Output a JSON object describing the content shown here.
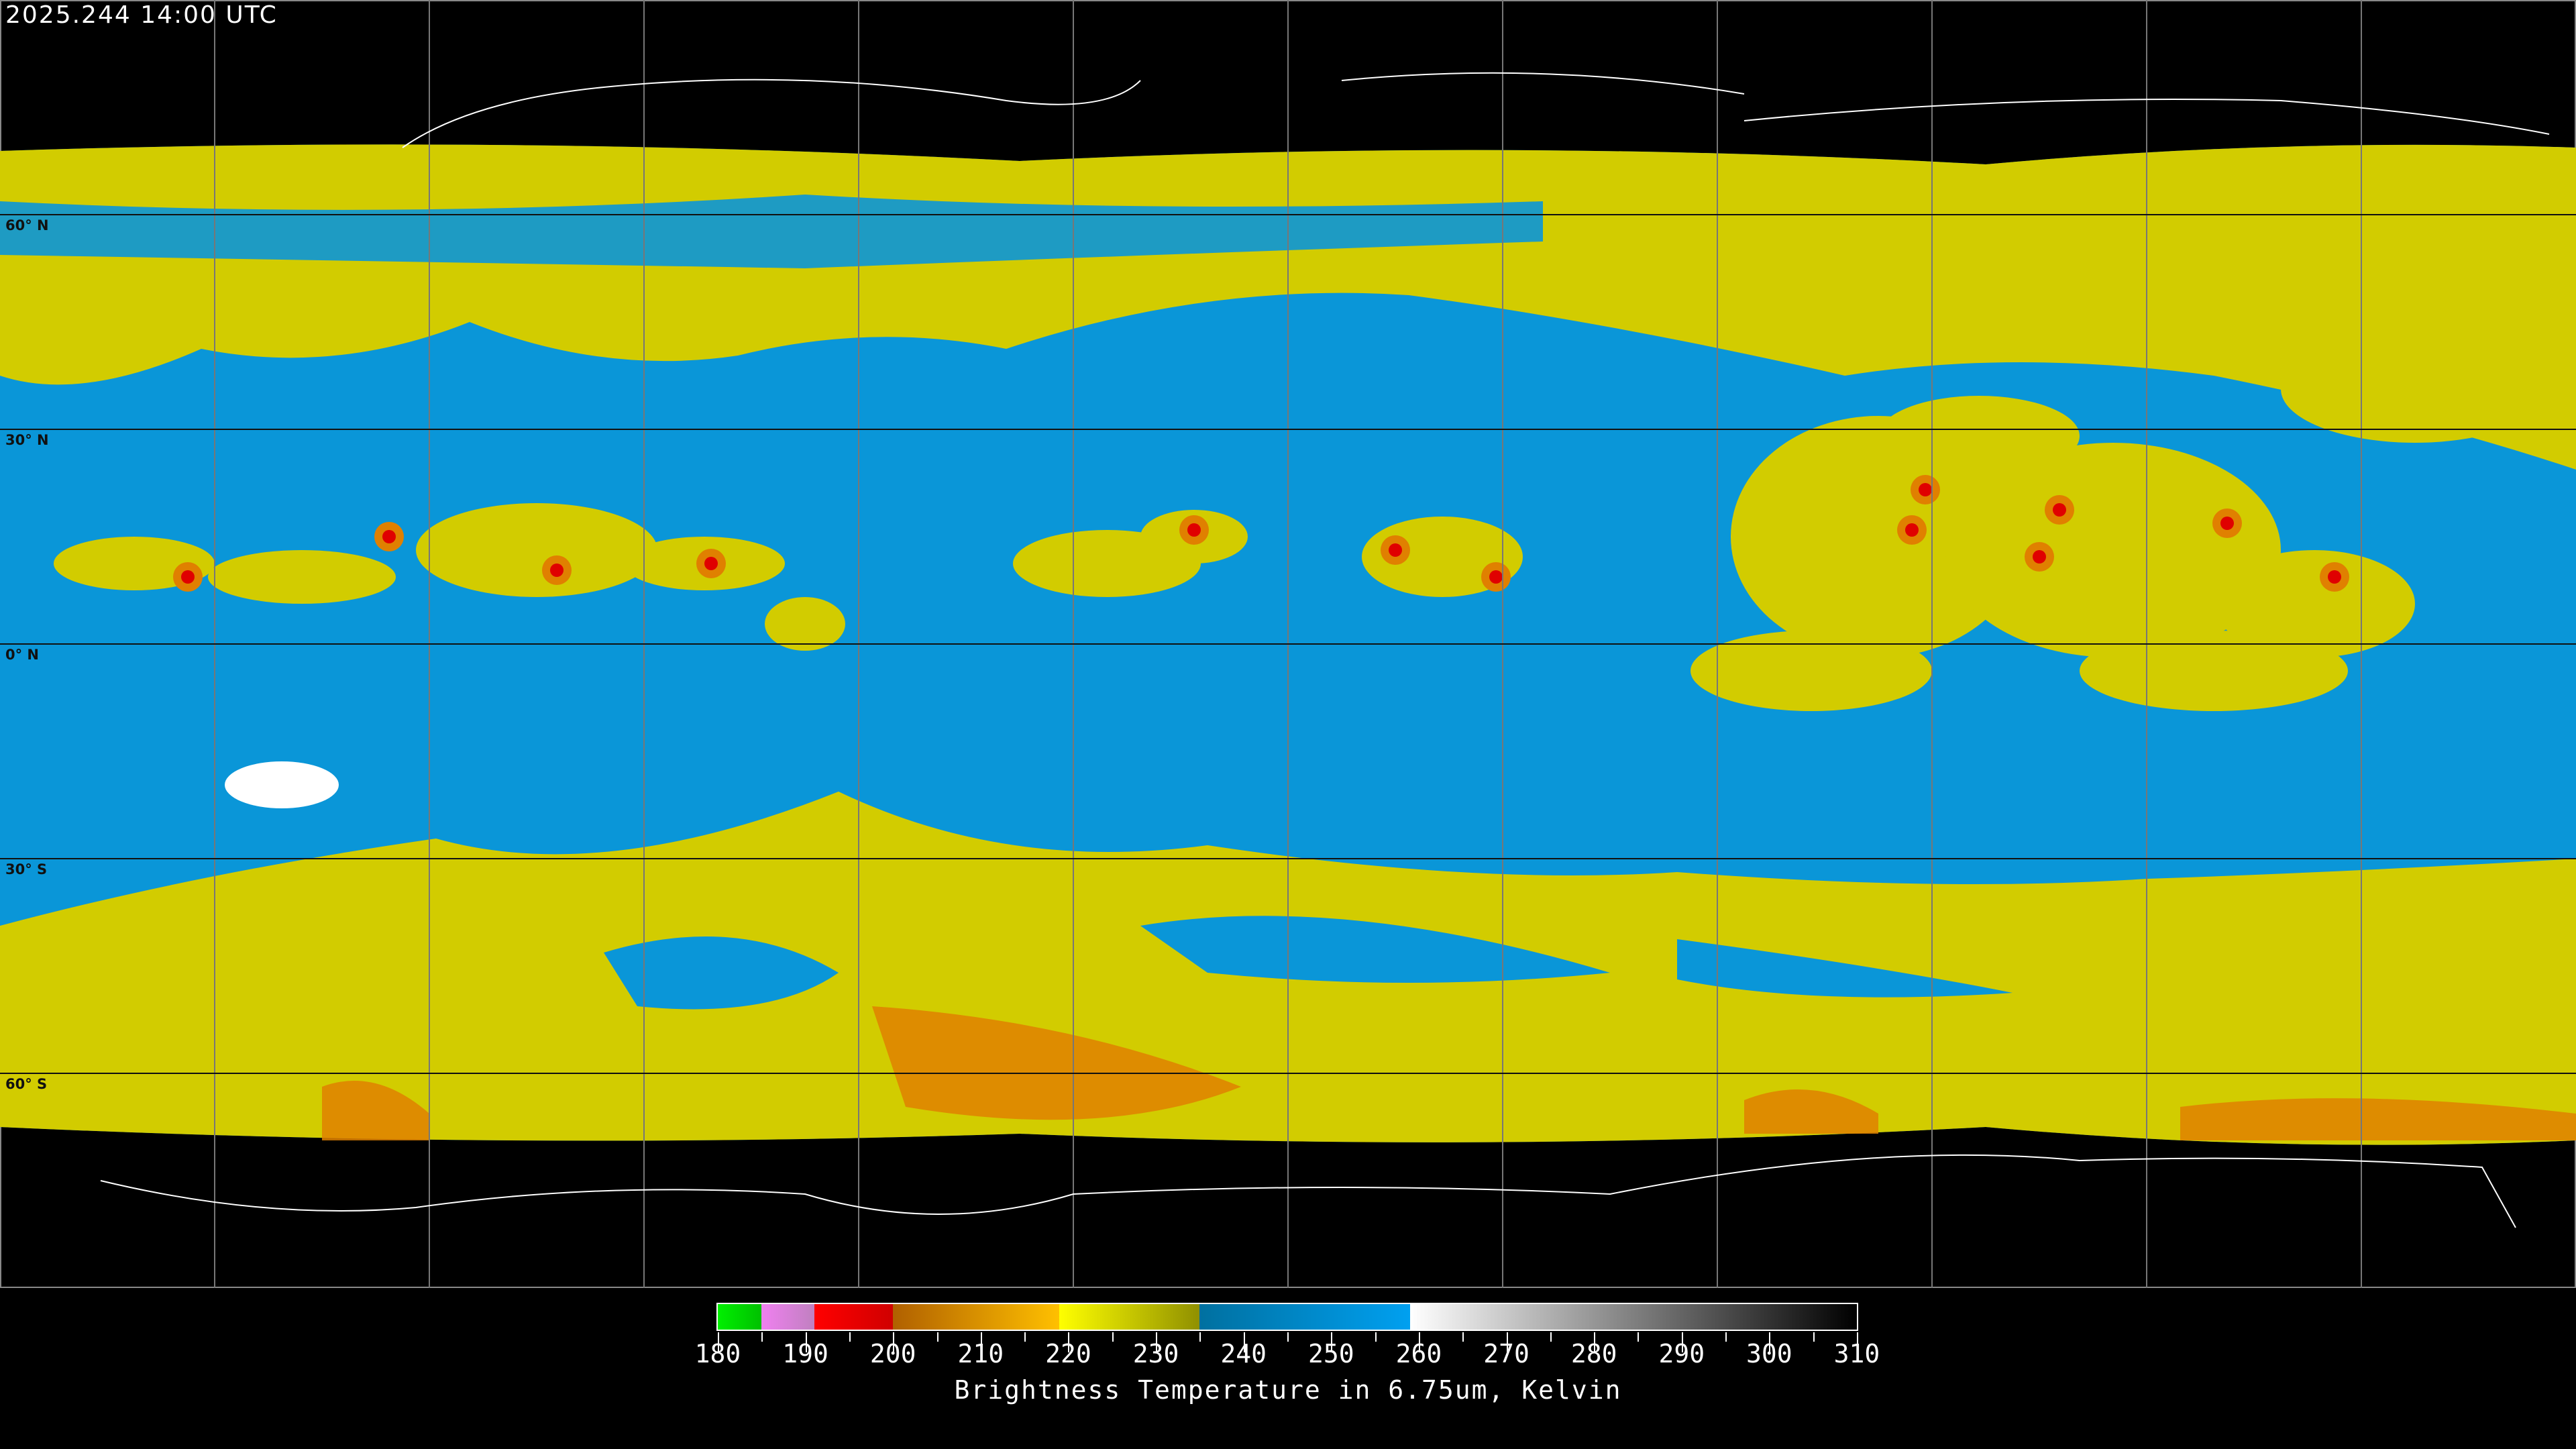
{
  "header": {
    "timestamp": "2025.244 14:00 UTC"
  },
  "map": {
    "projection": "equirectangular",
    "lat_labels": [
      "60° N",
      "30° N",
      "0° N",
      "30° S",
      "60° S"
    ],
    "colors": {
      "background": "#000000",
      "cold_cloud": "#d2cc00",
      "dry_upper": "#0a96d8",
      "very_cold": "#e08000",
      "deep_convection": "#e00000"
    }
  },
  "colorbar": {
    "title": "Brightness Temperature in 6.75um, Kelvin",
    "ticks": [
      "180",
      "190",
      "200",
      "210",
      "220",
      "230",
      "240",
      "250",
      "260",
      "270",
      "280",
      "290",
      "300",
      "310"
    ],
    "range": [
      180,
      310
    ],
    "segments": [
      {
        "from": 180,
        "to": 185,
        "start": "#00f000",
        "end": "#00c000"
      },
      {
        "from": 185,
        "to": 191,
        "start": "#f080f0",
        "end": "#c080c0"
      },
      {
        "from": 191,
        "to": 200,
        "start": "#ff0000",
        "end": "#d00000"
      },
      {
        "from": 200,
        "to": 219,
        "start": "#b06000",
        "end": "#ffc000"
      },
      {
        "from": 219,
        "to": 235,
        "start": "#ffff00",
        "end": "#909000"
      },
      {
        "from": 235,
        "to": 259,
        "start": "#0070a0",
        "end": "#00a0f0"
      },
      {
        "from": 259,
        "to": 310,
        "start": "#ffffff",
        "end": "#000000"
      }
    ]
  }
}
